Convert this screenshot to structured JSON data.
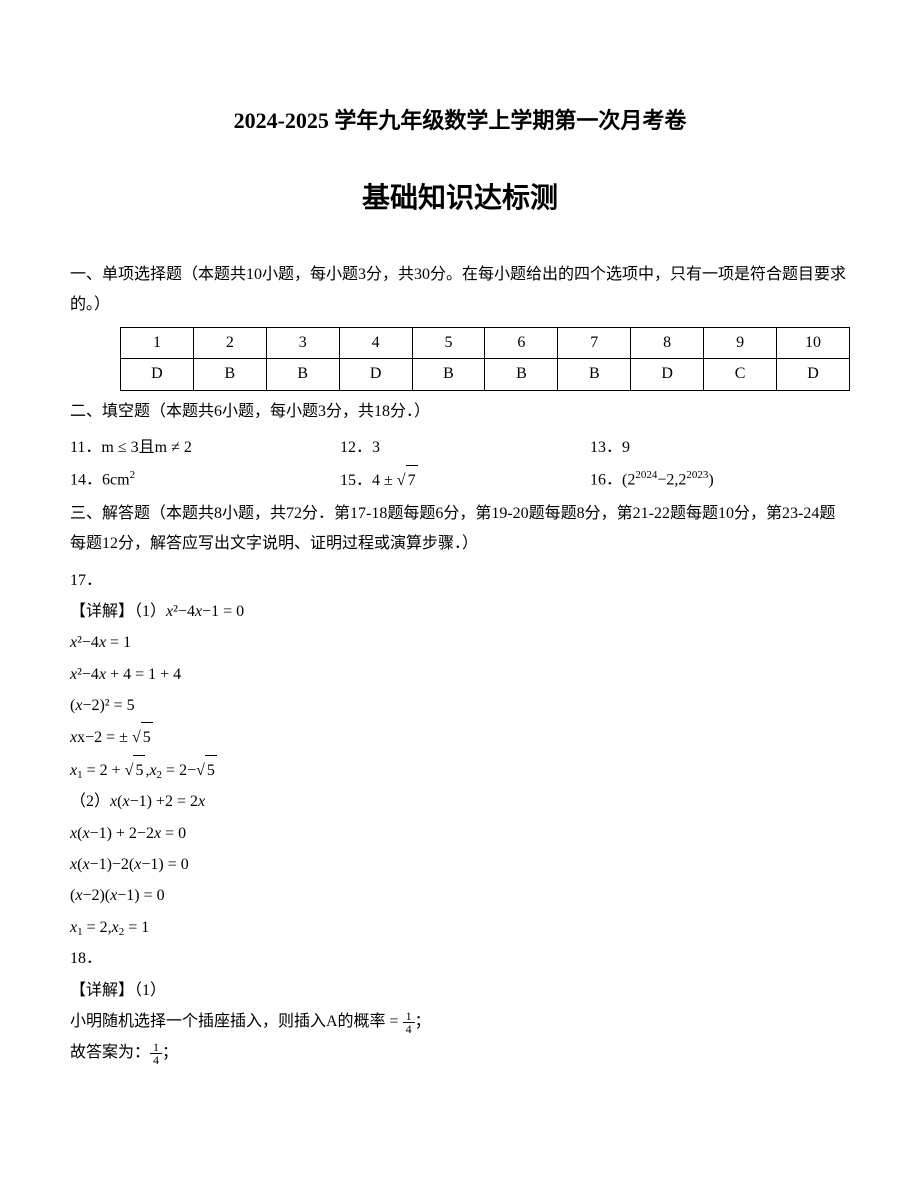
{
  "title_main": "2024-2025 学年九年级数学上学期第一次月考卷",
  "title_sub": "基础知识达标测",
  "section1": {
    "intro": "一、单项选择题（本题共10小题，每小题3分，共30分。在每小题给出的四个选项中，只有一项是符合题目要求的。）",
    "header": [
      "1",
      "2",
      "3",
      "4",
      "5",
      "6",
      "7",
      "8",
      "9",
      "10"
    ],
    "answers": [
      "D",
      "B",
      "B",
      "D",
      "B",
      "B",
      "B",
      "D",
      "C",
      "D"
    ]
  },
  "section2": {
    "intro": "二、填空题（本题共6小题，每小题3分，共18分．）",
    "items": {
      "q11_label": "11．",
      "q11_answer": "m ≤ 3且m ≠ 2",
      "q12_label": "12．",
      "q12_answer": "3",
      "q13_label": "13．",
      "q13_answer": "9",
      "q14_label": "14．",
      "q14_answer": "6cm",
      "q14_sup": "2",
      "q15_label": "15．",
      "q15_answer_prefix": "4 ± ",
      "q15_sqrt": "7",
      "q16_label": "16．",
      "q16_open": "(2",
      "q16_exp1": "2024",
      "q16_mid": "−2,2",
      "q16_exp2": "2023",
      "q16_close": ")"
    }
  },
  "section3": {
    "intro": "三、解答题（本题共8小题，共72分．第17-18题每题6分，第19-20题每题8分，第21-22题每题10分，第23-24题每题12分，解答应写出文字说明、证明过程或演算步骤．）",
    "q17": {
      "label": "17．",
      "detail_label": "【详解】（1）",
      "eq1": "x²−4x−1 = 0",
      "eq2": "x²−4x = 1",
      "eq3": "x²−4x + 4 = 1 + 4",
      "eq4": "(x−2)² = 5",
      "eq5_prefix": "x−2 = ± ",
      "eq5_sqrt": "5",
      "eq6_x1_prefix": "x",
      "eq6_sub1": "1",
      "eq6_x1": " = 2 + ",
      "eq6_sqrt1": "5",
      "eq6_comma": ",x",
      "eq6_sub2": "2",
      "eq6_x2": " = 2−",
      "eq6_sqrt2": "5",
      "part2_label": "（2）",
      "part2_eq1": "x(x−1) +2 = 2x",
      "part2_eq2": "x(x−1) + 2−2x = 0",
      "part2_eq3": "x(x−1)−2(x−1) = 0",
      "part2_eq4": "(x−2)(x−1) = 0",
      "part2_eq5_x1": "x",
      "part2_eq5_s1": "1",
      "part2_eq5_e1": " = 2",
      "part2_eq5_comma": ",x",
      "part2_eq5_s2": "2",
      "part2_eq5_e2": " = 1"
    },
    "q18": {
      "label": "18．",
      "detail_label": "【详解】（1）",
      "text1": "小明随机选择一个插座插入，则插入A的概率 = ",
      "frac_num": "1",
      "frac_den": "4",
      "semicolon": "；",
      "text2": "故答案为：",
      "frac2_num": "1",
      "frac2_den": "4",
      "semicolon2": "；"
    }
  }
}
